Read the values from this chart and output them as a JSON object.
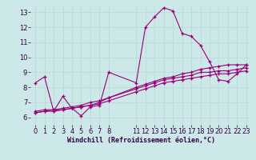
{
  "xlabel": "Windchill (Refroidissement éolien,°C)",
  "bg_color": "#cce8e8",
  "grid_color": "#aacccc",
  "line_color": "#990077",
  "xlim": [
    -0.5,
    23.5
  ],
  "ylim": [
    5.5,
    13.5
  ],
  "xticks": [
    0,
    1,
    2,
    3,
    4,
    5,
    6,
    7,
    8,
    11,
    12,
    13,
    14,
    15,
    16,
    17,
    18,
    19,
    20,
    21,
    22,
    23
  ],
  "yticks": [
    6,
    7,
    8,
    9,
    10,
    11,
    12,
    13
  ],
  "series": [
    {
      "x": [
        0,
        1,
        2,
        3,
        4,
        5,
        6,
        7,
        8,
        11,
        12,
        13,
        14,
        15,
        16,
        17,
        18,
        19,
        20,
        21,
        22,
        23
      ],
      "y": [
        8.3,
        8.7,
        6.4,
        7.4,
        6.6,
        6.1,
        6.7,
        6.8,
        9.0,
        8.3,
        12.0,
        12.7,
        13.3,
        13.1,
        11.6,
        11.4,
        10.8,
        9.7,
        8.5,
        8.4,
        8.9,
        9.5
      ]
    },
    {
      "x": [
        0,
        1,
        2,
        3,
        4,
        5,
        6,
        7,
        8,
        11,
        12,
        13,
        14,
        15,
        16,
        17,
        18,
        19,
        20,
        21,
        22,
        23
      ],
      "y": [
        6.4,
        6.5,
        6.5,
        6.5,
        6.6,
        6.7,
        6.8,
        7.0,
        7.3,
        8.0,
        8.2,
        8.4,
        8.6,
        8.7,
        8.9,
        9.0,
        9.2,
        9.3,
        9.4,
        9.5,
        9.5,
        9.5
      ]
    },
    {
      "x": [
        0,
        1,
        2,
        3,
        4,
        5,
        6,
        7,
        8,
        11,
        12,
        13,
        14,
        15,
        16,
        17,
        18,
        19,
        20,
        21,
        22,
        23
      ],
      "y": [
        6.3,
        6.4,
        6.5,
        6.6,
        6.7,
        6.8,
        7.0,
        7.1,
        7.3,
        7.9,
        8.1,
        8.3,
        8.5,
        8.6,
        8.7,
        8.8,
        9.0,
        9.0,
        9.1,
        9.1,
        9.2,
        9.3
      ]
    },
    {
      "x": [
        0,
        1,
        2,
        3,
        4,
        5,
        6,
        7,
        8,
        11,
        12,
        13,
        14,
        15,
        16,
        17,
        18,
        19,
        20,
        21,
        22,
        23
      ],
      "y": [
        6.3,
        6.4,
        6.4,
        6.5,
        6.6,
        6.7,
        6.8,
        6.9,
        7.1,
        7.7,
        7.9,
        8.1,
        8.3,
        8.4,
        8.5,
        8.6,
        8.7,
        8.8,
        8.9,
        8.9,
        9.0,
        9.1
      ]
    }
  ],
  "xlabel_fontsize": 6,
  "tick_fontsize": 6
}
